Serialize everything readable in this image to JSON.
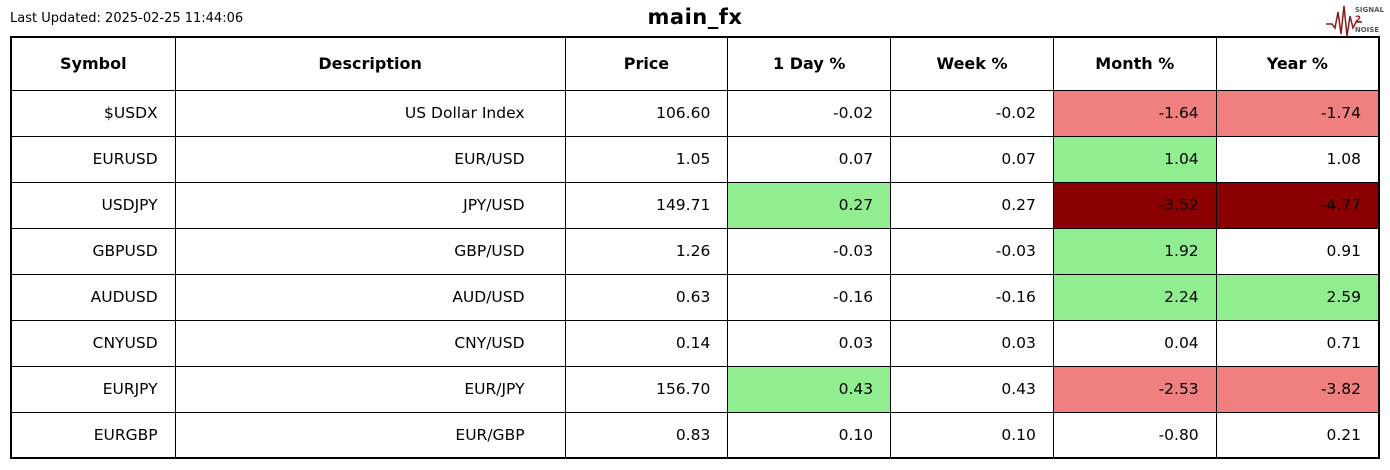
{
  "header": {
    "last_updated": "Last Updated: 2025-02-25 11:44:06",
    "title": "main_fx",
    "logo": {
      "line1": "SIGNAL",
      "line2": "2",
      "line3": "NOISE",
      "waveform_icon": "ecg-waveform-icon",
      "waveform_color": "#8b1a1a"
    }
  },
  "colors": {
    "green": "#90ee90",
    "salmon": "#f08080",
    "darkred": "#8b0000"
  },
  "chart_data": {
    "type": "table",
    "title": "main_fx",
    "columns": [
      "Symbol",
      "Description",
      "Price",
      "1 Day %",
      "Week %",
      "Month %",
      "Year %"
    ],
    "rows": [
      {
        "symbol": "$USDX",
        "description": "US Dollar Index",
        "price": "106.60",
        "day": "-0.02",
        "week": "-0.02",
        "month": "-1.64",
        "year": "-1.74",
        "cell_bg": {
          "month": "salmon",
          "year": "salmon"
        }
      },
      {
        "symbol": "EURUSD",
        "description": "EUR/USD",
        "price": "1.05",
        "day": "0.07",
        "week": "0.07",
        "month": "1.04",
        "year": "1.08",
        "cell_bg": {
          "month": "green"
        }
      },
      {
        "symbol": "USDJPY",
        "description": "JPY/USD",
        "price": "149.71",
        "day": "0.27",
        "week": "0.27",
        "month": "-3.52",
        "year": "-4.77",
        "cell_bg": {
          "day": "green",
          "month": "darkred",
          "year": "darkred"
        }
      },
      {
        "symbol": "GBPUSD",
        "description": "GBP/USD",
        "price": "1.26",
        "day": "-0.03",
        "week": "-0.03",
        "month": "1.92",
        "year": "0.91",
        "cell_bg": {
          "month": "green"
        }
      },
      {
        "symbol": "AUDUSD",
        "description": "AUD/USD",
        "price": "0.63",
        "day": "-0.16",
        "week": "-0.16",
        "month": "2.24",
        "year": "2.59",
        "cell_bg": {
          "month": "green",
          "year": "green"
        }
      },
      {
        "symbol": "CNYUSD",
        "description": "CNY/USD",
        "price": "0.14",
        "day": "0.03",
        "week": "0.03",
        "month": "0.04",
        "year": "0.71",
        "cell_bg": {}
      },
      {
        "symbol": "EURJPY",
        "description": "EUR/JPY",
        "price": "156.70",
        "day": "0.43",
        "week": "0.43",
        "month": "-2.53",
        "year": "-3.82",
        "cell_bg": {
          "day": "green",
          "month": "salmon",
          "year": "salmon"
        }
      },
      {
        "symbol": "EURGBP",
        "description": "EUR/GBP",
        "price": "0.83",
        "day": "0.10",
        "week": "0.10",
        "month": "-0.80",
        "year": "0.21",
        "cell_bg": {}
      }
    ]
  }
}
